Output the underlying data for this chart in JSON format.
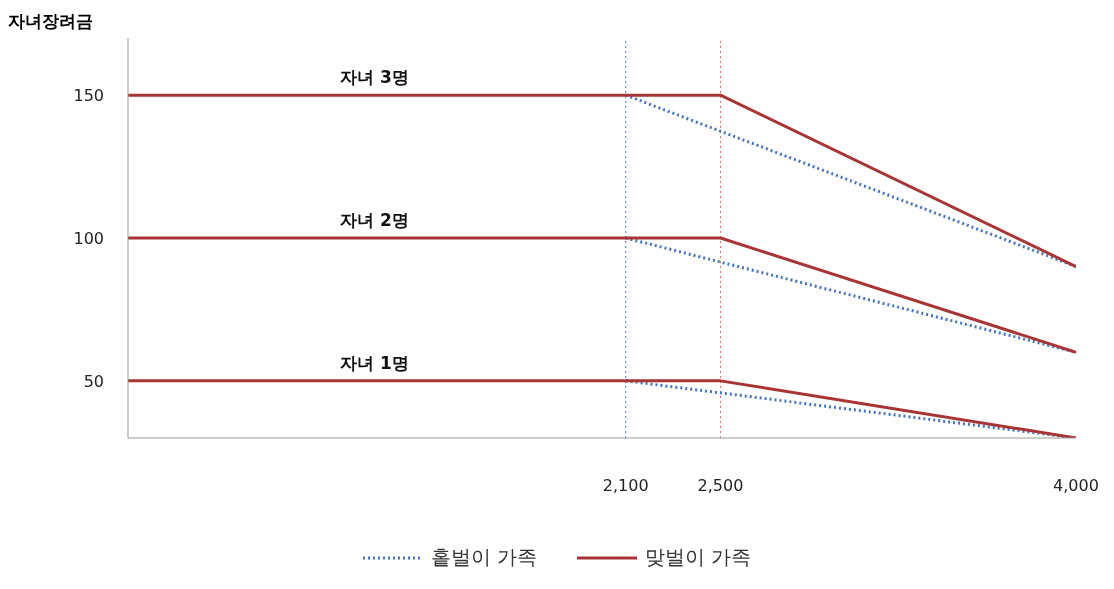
{
  "chart_data": {
    "type": "line",
    "ylabel": "자녀장려금",
    "xlim": [
      0,
      4000
    ],
    "xticks": [
      {
        "value": 2100,
        "label": "2,100"
      },
      {
        "value": 2500,
        "label": "2,500"
      },
      {
        "value": 4000,
        "label": "4,000"
      }
    ],
    "ylim": [
      30,
      170
    ],
    "yticks": [
      50,
      100,
      150
    ],
    "grid": false,
    "legend": "bottom",
    "marker": "none",
    "series": [
      {
        "name": "홑벌이 가족",
        "color": "#4472c4",
        "line_style": "dotted",
        "x": [
          2100,
          4000
        ],
        "values": [
          150,
          90
        ]
      },
      {
        "color": "#4472c4",
        "line_style": "dotted",
        "x": [
          2100,
          4000
        ],
        "values": [
          100,
          60
        ]
      },
      {
        "color": "#4472c4",
        "line_style": "dotted",
        "x": [
          2100,
          4000
        ],
        "values": [
          50,
          30
        ]
      },
      {
        "name": "맞벌이 가족",
        "color": "#a83434",
        "line_style": "solid",
        "x": [
          0,
          2500,
          4000
        ],
        "values": [
          150,
          150,
          90
        ]
      },
      {
        "color": "#a83434",
        "line_style": "solid",
        "x": [
          0,
          2500,
          4000
        ],
        "values": [
          100,
          100,
          60
        ]
      },
      {
        "color": "#a83434",
        "line_style": "solid",
        "x": [
          0,
          2500,
          4000
        ],
        "values": [
          50,
          50,
          30
        ]
      }
    ],
    "ref_lines": [
      {
        "axis": "x",
        "value": 2100,
        "color": "#4472c4",
        "line_style": "dotted"
      },
      {
        "axis": "x",
        "value": 2500,
        "color": "#e07070",
        "line_style": "dotted"
      }
    ],
    "annotations": [
      {
        "text": "자녀 3명",
        "y": 150
      },
      {
        "text": "자녀 2명",
        "y": 100
      },
      {
        "text": "자녀 1명",
        "y": 50
      }
    ]
  }
}
